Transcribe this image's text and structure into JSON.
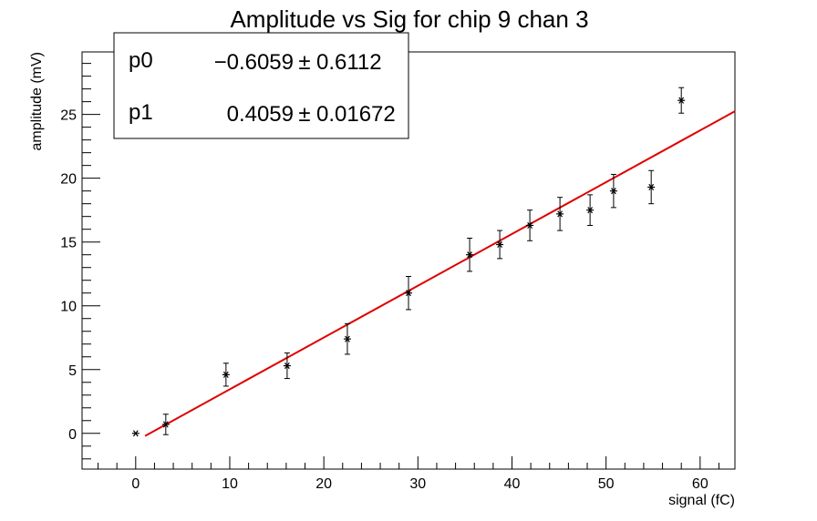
{
  "chart_data": {
    "type": "scatter",
    "title": "Amplitude vs Sig for chip 9 chan 3",
    "xlabel": "signal (fC)",
    "ylabel": "amplitude (mV)",
    "xlim": [
      -5.7,
      63.7
    ],
    "ylim": [
      -2.8,
      29.9
    ],
    "x_ticks": [
      0,
      10,
      20,
      30,
      40,
      50,
      60
    ],
    "y_ticks": [
      0,
      5,
      10,
      15,
      20,
      25
    ],
    "grid": false,
    "series": [
      {
        "marker": "asterisk",
        "color": "#000000",
        "points": [
          {
            "x": 0.0,
            "y": 0.0,
            "err": 0.0
          },
          {
            "x": 3.2,
            "y": 0.7,
            "err": 0.8
          },
          {
            "x": 9.6,
            "y": 4.6,
            "err": 0.9
          },
          {
            "x": 16.1,
            "y": 5.3,
            "err": 1.0
          },
          {
            "x": 22.5,
            "y": 7.4,
            "err": 1.2
          },
          {
            "x": 29.0,
            "y": 11.0,
            "err": 1.3
          },
          {
            "x": 35.5,
            "y": 14.0,
            "err": 1.3
          },
          {
            "x": 38.7,
            "y": 14.8,
            "err": 1.1
          },
          {
            "x": 41.9,
            "y": 16.3,
            "err": 1.2
          },
          {
            "x": 45.1,
            "y": 17.2,
            "err": 1.3
          },
          {
            "x": 48.3,
            "y": 17.5,
            "err": 1.2
          },
          {
            "x": 50.8,
            "y": 19.0,
            "err": 1.3
          },
          {
            "x": 54.8,
            "y": 19.3,
            "err": 1.3
          },
          {
            "x": 58.0,
            "y": 26.1,
            "err": 1.0
          }
        ]
      }
    ],
    "fit": {
      "color": "#e00000",
      "x_range": [
        1.0,
        63.7
      ],
      "p0": -0.6059,
      "p1": 0.4059
    }
  },
  "stats_box": {
    "rows": [
      {
        "name": "p0",
        "value": "−0.6059",
        "pm": "±",
        "error": "0.6112"
      },
      {
        "name": "p1",
        "value": "0.4059",
        "pm": "±",
        "error": "0.01672"
      }
    ]
  }
}
